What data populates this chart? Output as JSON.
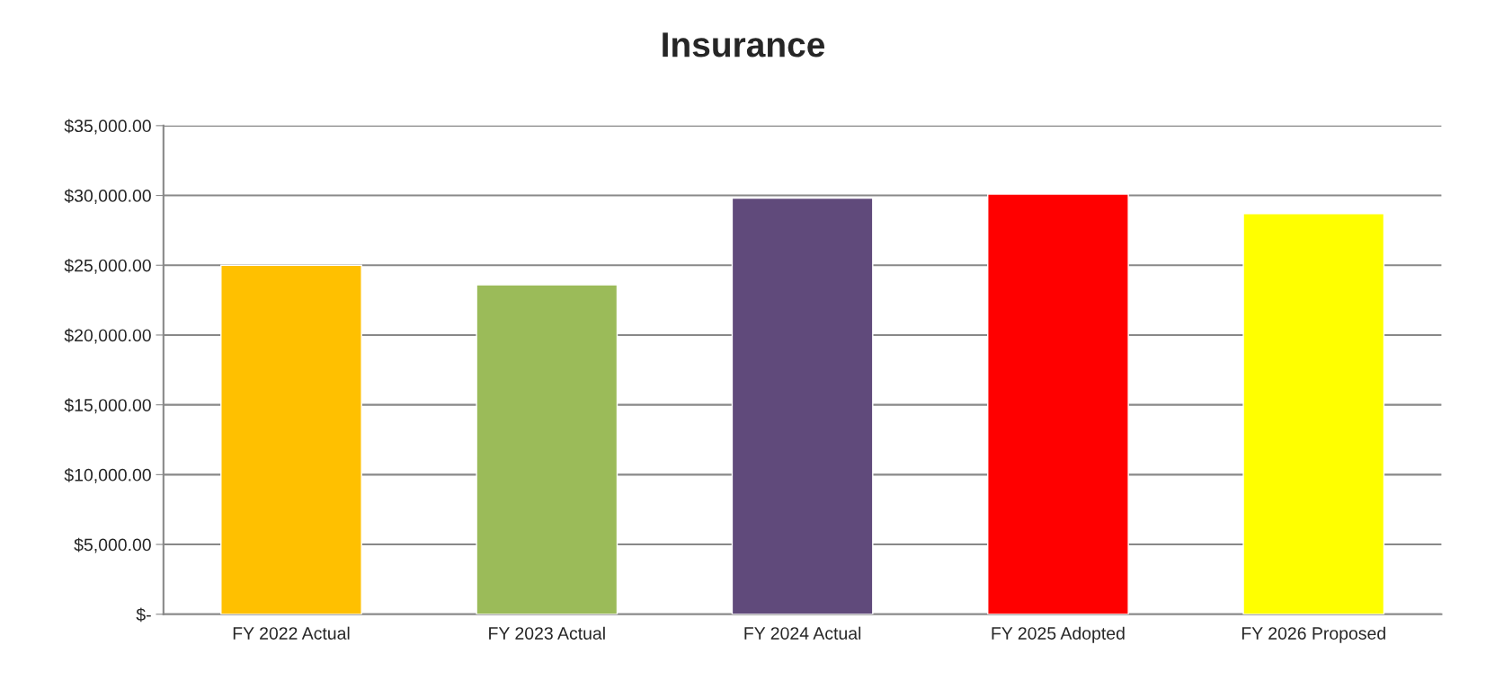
{
  "chart_data": {
    "type": "bar",
    "title": "Insurance",
    "categories": [
      "FY 2022 Actual",
      "FY 2023 Actual",
      "FY 2024 Actual",
      "FY 2025 Adopted",
      "FY 2026 Proposed"
    ],
    "values": [
      25000,
      23600,
      29800,
      30100,
      28700
    ],
    "colors": [
      "#ffc000",
      "#9bbb59",
      "#604a7b",
      "#ff0000",
      "#ffff00"
    ],
    "ylim": [
      0,
      35000
    ],
    "yticks": [
      {
        "value": 0,
        "label": "$-"
      },
      {
        "value": 5000,
        "label": "$5,000.00"
      },
      {
        "value": 10000,
        "label": "$10,000.00"
      },
      {
        "value": 15000,
        "label": "$15,000.00"
      },
      {
        "value": 20000,
        "label": "$20,000.00"
      },
      {
        "value": 25000,
        "label": "$25,000.00"
      },
      {
        "value": 30000,
        "label": "$30,000.00"
      },
      {
        "value": 35000,
        "label": "$35,000.00"
      }
    ],
    "grid": "y"
  }
}
